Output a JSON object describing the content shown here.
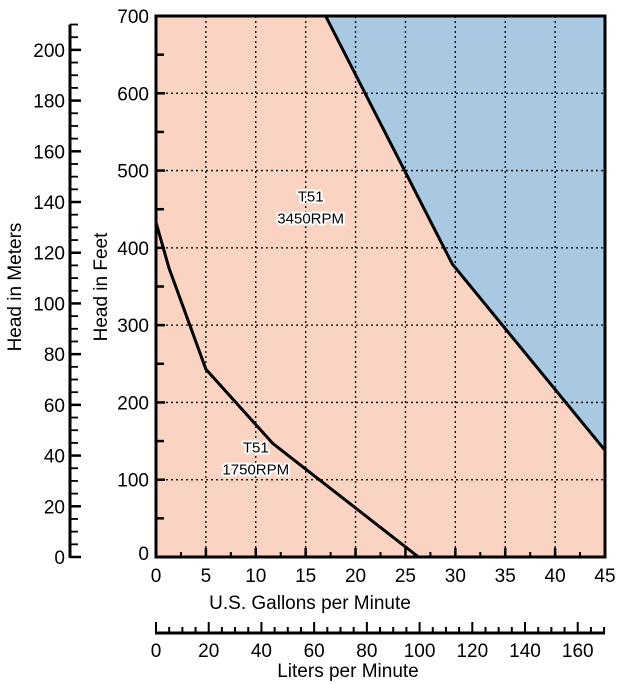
{
  "chart_data": {
    "type": "area",
    "xlabel": "U.S. Gallons per Minute",
    "ylabel": "Head in Feet",
    "xlim": [
      0,
      45
    ],
    "ylim": [
      0,
      700
    ],
    "x_ticks": [
      0,
      5,
      10,
      15,
      20,
      25,
      30,
      35,
      40,
      45
    ],
    "y_ticks": [
      0,
      100,
      200,
      300,
      400,
      500,
      600,
      700
    ],
    "grid": true,
    "secondary_x_axis": {
      "label": "Liters per Minute",
      "ticks": [
        0,
        20,
        40,
        60,
        80,
        100,
        120,
        140,
        160
      ],
      "minor_step": 5
    },
    "secondary_y_axis": {
      "label": "Head in Meters",
      "ticks": [
        0,
        20,
        40,
        60,
        80,
        100,
        120,
        140,
        160,
        180,
        200
      ],
      "minor_step": 5
    },
    "series": [
      {
        "name": "T51 1750RPM",
        "label_lines": [
          "T51",
          "1750RPM"
        ],
        "label_at": [
          10,
          135
        ],
        "x": [
          0,
          1.3,
          5,
          11.7,
          26.3
        ],
        "y": [
          433,
          374,
          243,
          147,
          0
        ]
      },
      {
        "name": "T51 3450RPM",
        "label_lines": [
          "T51",
          "3450RPM"
        ],
        "label_at": [
          15.5,
          460
        ],
        "x": [
          17,
          29.7,
          45
        ],
        "y": [
          700,
          379,
          138
        ]
      }
    ],
    "colors": {
      "operating_region": "#fbd3c3",
      "outside_region": "#a9c9e3",
      "lines": "#000000"
    }
  }
}
